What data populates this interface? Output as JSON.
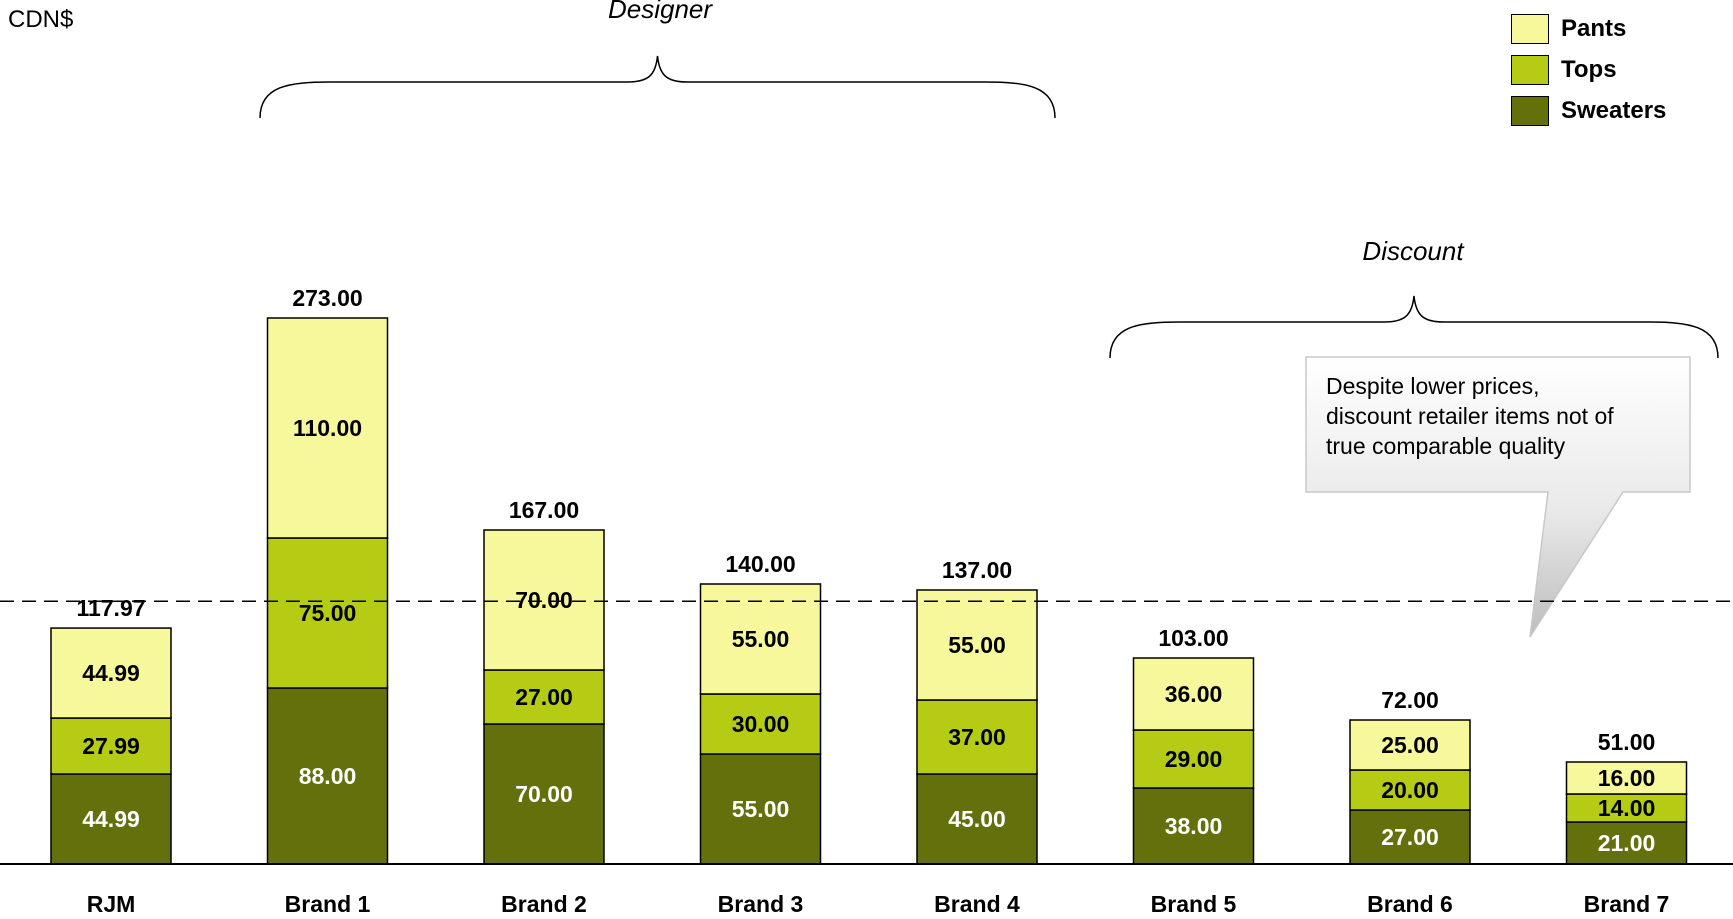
{
  "chart_data": {
    "type": "bar",
    "stacked": true,
    "unit_label": "CDN$",
    "categories": [
      "RJM",
      "Brand 1",
      "Brand 2",
      "Brand 3",
      "Brand 4",
      "Brand 5",
      "Brand 6",
      "Brand 7"
    ],
    "series": [
      {
        "name": "Sweaters",
        "color": "#64700c",
        "label_color": "#ffffff",
        "values": [
          44.99,
          88.0,
          70.0,
          55.0,
          45.0,
          38.0,
          27.0,
          21.0
        ],
        "labels": [
          "44.99",
          "88.00",
          "70.00",
          "55.00",
          "45.00",
          "38.00",
          "27.00",
          "21.00"
        ]
      },
      {
        "name": "Tops",
        "color": "#b5cb14",
        "label_color": "#000000",
        "values": [
          27.99,
          75.0,
          27.0,
          30.0,
          37.0,
          29.0,
          20.0,
          14.0
        ],
        "labels": [
          "27.99",
          "75.00",
          "27.00",
          "30.00",
          "37.00",
          "29.00",
          "20.00",
          "14.00"
        ]
      },
      {
        "name": "Pants",
        "color": "#f7f79b",
        "label_color": "#000000",
        "values": [
          44.99,
          110.0,
          70.0,
          55.0,
          55.0,
          36.0,
          25.0,
          16.0
        ],
        "labels": [
          "44.99",
          "110.00",
          "70.00",
          "55.00",
          "55.00",
          "36.00",
          "25.00",
          "16.00"
        ]
      }
    ],
    "totals": [
      "117.97",
      "273.00",
      "167.00",
      "140.00",
      "137.00",
      "103.00",
      "72.00",
      "51.00"
    ],
    "reference_line": 131.4,
    "ylim": [
      0,
      273
    ],
    "legend": {
      "position": "top-right",
      "order": [
        "Pants",
        "Tops",
        "Sweaters"
      ]
    },
    "groups": [
      {
        "label": "Designer",
        "from": "Brand 1",
        "to": "Brand 4"
      },
      {
        "label": "Discount",
        "from": "Brand 5",
        "to": "Brand 7"
      }
    ],
    "callout": "Despite lower prices,\ndiscount retailer items not of\ntrue comparable quality",
    "grid": false
  }
}
